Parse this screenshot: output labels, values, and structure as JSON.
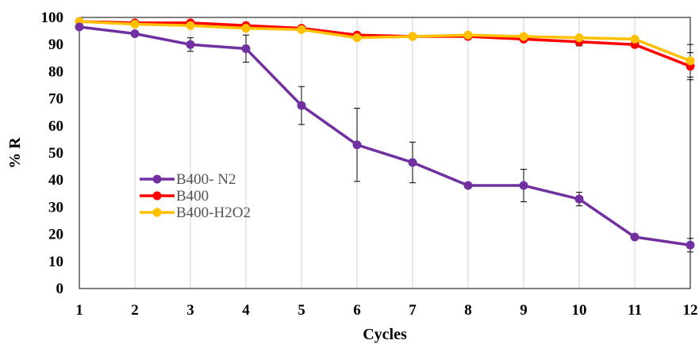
{
  "chart_data": {
    "type": "line",
    "xlabel": "Cycles",
    "ylabel": "% R",
    "x": [
      1,
      2,
      3,
      4,
      5,
      6,
      7,
      8,
      9,
      10,
      11,
      12
    ],
    "xlim": [
      1,
      12
    ],
    "ylim": [
      0,
      100
    ],
    "yticks": [
      0,
      10,
      20,
      30,
      40,
      50,
      60,
      70,
      80,
      90,
      100
    ],
    "grid": "vertical",
    "legend_position": "center-left",
    "series": [
      {
        "name": "B400- N2",
        "color": "#7030A0",
        "values": [
          96.5,
          94,
          90,
          88.5,
          67.5,
          53,
          46.5,
          38,
          38,
          33,
          19,
          16
        ],
        "error": [
          0,
          0,
          2.5,
          5,
          7,
          13.5,
          7.5,
          0,
          6,
          2.5,
          0,
          2.5
        ]
      },
      {
        "name": "B400",
        "color": "#FF0000",
        "values": [
          98.5,
          98,
          98,
          97,
          96,
          93.5,
          93,
          93,
          92,
          91,
          90,
          82
        ],
        "error": [
          0,
          0,
          0,
          0,
          0,
          0,
          0,
          0,
          0,
          1.5,
          0,
          5
        ]
      },
      {
        "name": "B400-H2O2",
        "color": "#FFC000",
        "values": [
          98.5,
          97.5,
          97,
          96,
          95.5,
          92.5,
          93,
          93.5,
          93,
          92.5,
          92,
          84
        ],
        "error": [
          0,
          0,
          0,
          0,
          0,
          0,
          0,
          0,
          0,
          0,
          0,
          6
        ]
      }
    ]
  }
}
